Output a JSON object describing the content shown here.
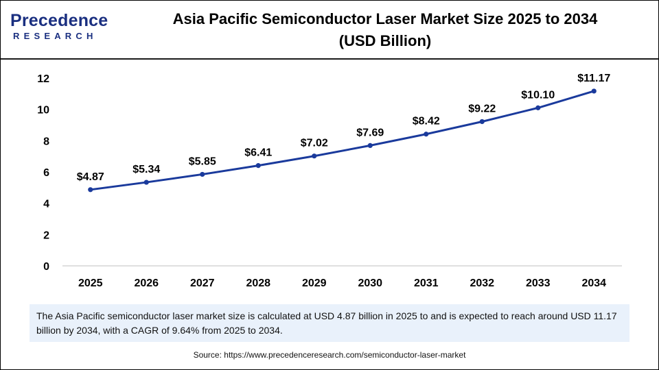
{
  "brand": {
    "logo_word": "Precedence",
    "logo_sub": "RESEARCH",
    "colors": {
      "navy": "#1a2f80",
      "orange": "#ee7b22"
    }
  },
  "header": {
    "title_line1": "Asia Pacific Semiconductor Laser Market Size 2025 to 2034",
    "title_line2": "(USD Billion)"
  },
  "chart_data": {
    "type": "line",
    "title": "Asia Pacific Semiconductor Laser Market Size 2025 to 2034 (USD Billion)",
    "xlabel": "",
    "ylabel": "",
    "categories": [
      "2025",
      "2026",
      "2027",
      "2028",
      "2029",
      "2030",
      "2031",
      "2032",
      "2033",
      "2034"
    ],
    "series": [
      {
        "values": [
          4.87,
          5.34,
          5.85,
          6.41,
          7.02,
          7.69,
          8.42,
          9.22,
          10.1,
          11.17
        ],
        "labels": [
          "$4.87",
          "$5.34",
          "$5.85",
          "$6.41",
          "$7.02",
          "$7.69",
          "$8.42",
          "$9.22",
          "$10.10",
          "$11.17"
        ],
        "color": "#1a3a9c"
      }
    ],
    "ylim": [
      0,
      12
    ],
    "yticks": [
      0,
      2,
      4,
      6,
      8,
      10,
      12
    ],
    "grid": false,
    "legend": "none"
  },
  "description": "The Asia Pacific semiconductor laser market size is calculated at USD 4.87 billion in 2025 to and is expected to reach around USD 11.17 billion by 2034, with a CAGR of 9.64% from 2025 to 2034.",
  "source": "Source: https://www.precedenceresearch.com/semiconductor-laser-market"
}
